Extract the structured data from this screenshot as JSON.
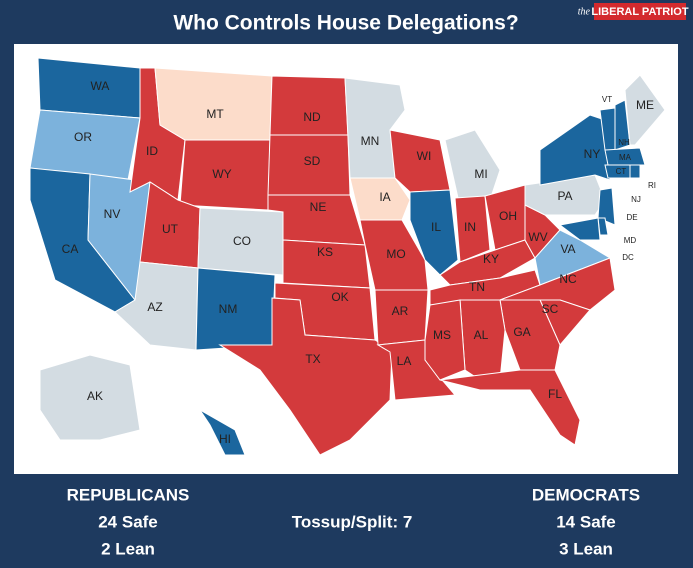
{
  "header": {
    "title": "Who Controls House Delegations?",
    "brand_prefix": "the",
    "brand": "LIBERAL PATRIOT"
  },
  "map": {
    "states": [
      {
        "label": "WA",
        "color": "#1b669e"
      },
      {
        "label": "OR",
        "color": "#7cb2dc"
      },
      {
        "label": "CA",
        "color": "#1b669e"
      },
      {
        "label": "NV",
        "color": "#7cb2dc"
      },
      {
        "label": "ID",
        "color": "#d33a3c"
      },
      {
        "label": "MT",
        "color": "#fcdcca"
      },
      {
        "label": "WY",
        "color": "#d33a3c"
      },
      {
        "label": "UT",
        "color": "#d33a3c"
      },
      {
        "label": "CO",
        "color": "#d3dce2"
      },
      {
        "label": "AZ",
        "color": "#d3dce2"
      },
      {
        "label": "NM",
        "color": "#1b669e"
      },
      {
        "label": "ND",
        "color": "#d33a3c"
      },
      {
        "label": "SD",
        "color": "#d33a3c"
      },
      {
        "label": "NE",
        "color": "#d33a3c"
      },
      {
        "label": "KS",
        "color": "#d33a3c"
      },
      {
        "label": "OK",
        "color": "#d33a3c"
      },
      {
        "label": "TX",
        "color": "#d33a3c"
      },
      {
        "label": "MN",
        "color": "#d3dce2"
      },
      {
        "label": "IA",
        "color": "#fcdcca"
      },
      {
        "label": "MO",
        "color": "#d33a3c"
      },
      {
        "label": "AR",
        "color": "#d33a3c"
      },
      {
        "label": "LA",
        "color": "#d33a3c"
      },
      {
        "label": "WI",
        "color": "#d33a3c"
      },
      {
        "label": "IL",
        "color": "#1b669e"
      },
      {
        "label": "MI",
        "color": "#d3dce2"
      },
      {
        "label": "IN",
        "color": "#d33a3c"
      },
      {
        "label": "OH",
        "color": "#d33a3c"
      },
      {
        "label": "KY",
        "color": "#d33a3c"
      },
      {
        "label": "TN",
        "color": "#d33a3c"
      },
      {
        "label": "WV",
        "color": "#d33a3c"
      },
      {
        "label": "VA",
        "color": "#7cb2dc"
      },
      {
        "label": "NC",
        "color": "#d33a3c"
      },
      {
        "label": "SC",
        "color": "#d33a3c"
      },
      {
        "label": "GA",
        "color": "#d33a3c"
      },
      {
        "label": "AL",
        "color": "#d33a3c"
      },
      {
        "label": "MS",
        "color": "#d33a3c"
      },
      {
        "label": "FL",
        "color": "#d33a3c"
      },
      {
        "label": "PA",
        "color": "#d3dce2"
      },
      {
        "label": "NY",
        "color": "#1b669e"
      },
      {
        "label": "VT",
        "color": "#1b669e"
      },
      {
        "label": "NH",
        "color": "#1b669e"
      },
      {
        "label": "ME",
        "color": "#d3dce2"
      },
      {
        "label": "MA",
        "color": "#1b669e"
      },
      {
        "label": "RI",
        "color": "#1b669e"
      },
      {
        "label": "CT",
        "color": "#1b669e"
      },
      {
        "label": "NJ",
        "color": "#1b669e"
      },
      {
        "label": "DE",
        "color": "#1b669e"
      },
      {
        "label": "MD",
        "color": "#1b669e"
      },
      {
        "label": "AK",
        "color": "#d3dce2"
      },
      {
        "label": "HI",
        "color": "#1b669e"
      }
    ],
    "dc": "DC"
  },
  "summary": {
    "republicans": {
      "title": "REPUBLICANS",
      "safe": "24 Safe",
      "lean": "2 Lean"
    },
    "tossup": "Tossup/Split: 7",
    "democrats": {
      "title": "DEMOCRATS",
      "safe": "14 Safe",
      "lean": "3 Lean"
    }
  }
}
